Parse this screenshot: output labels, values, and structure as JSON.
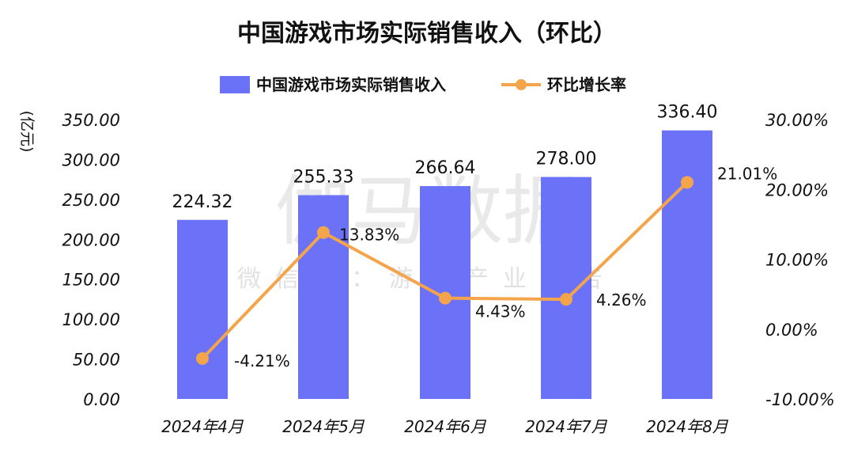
{
  "chart_data": {
    "type": "bar",
    "title": "中国游戏市场实际销售收入（环比）",
    "categories": [
      "2024年4月",
      "2024年5月",
      "2024年6月",
      "2024年7月",
      "2024年8月"
    ],
    "series": [
      {
        "name": "中国游戏市场实际销售收入",
        "type": "bar",
        "axis": "left",
        "values": [
          224.32,
          255.33,
          266.64,
          278.0,
          336.4
        ],
        "labels": [
          "224.32",
          "255.33",
          "266.64",
          "278.00",
          "336.40"
        ]
      },
      {
        "name": "环比增长率",
        "type": "line",
        "axis": "right",
        "values": [
          -4.21,
          13.83,
          4.43,
          4.26,
          21.01
        ],
        "labels": [
          "-4.21%",
          "13.83%",
          "4.43%",
          "4.26%",
          "21.01%"
        ]
      }
    ],
    "ylabel": "(亿元)",
    "ylim": [
      0,
      350
    ],
    "yticks": [
      "0.00",
      "50.00",
      "100.00",
      "150.00",
      "200.00",
      "250.00",
      "300.00",
      "350.00"
    ],
    "y2lim": [
      -10,
      30
    ],
    "y2ticks": [
      "-10.00%",
      "0.00%",
      "10.00%",
      "20.00%",
      "30.00%"
    ],
    "legend_position": "top-center",
    "grid": false,
    "colors": {
      "bar": "#6b72f7",
      "line": "#f4a54b"
    }
  },
  "watermark": {
    "main": "伽马数据",
    "sub": "微信号：游戏产业报告"
  }
}
